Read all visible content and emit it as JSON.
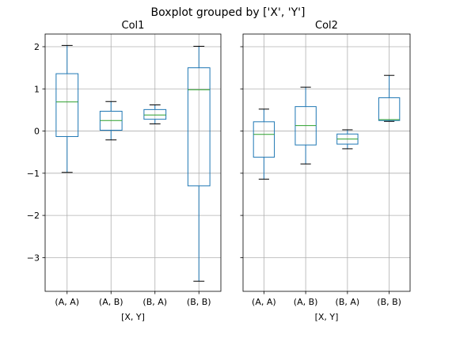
{
  "suptitle": "Boxplot grouped by ['X', 'Y']",
  "colors": {
    "box": "#1f77b4",
    "median": "#2ca02c",
    "whisker": "#1f77b4",
    "cap": "#000000",
    "grid": "#b0b0b0"
  },
  "chart_data": [
    {
      "type": "box",
      "title": "Col1",
      "xlabel": "[X, Y]",
      "ylabel": "",
      "ylim": [
        -3.8,
        2.3
      ],
      "yticks": [
        -3,
        -2,
        -1,
        0,
        1,
        2
      ],
      "ytick_labels": [
        "−3",
        "−2",
        "−1",
        "0",
        "1",
        "2"
      ],
      "grid": true,
      "categories": [
        "(A, A)",
        "(A, B)",
        "(B, A)",
        "(B, B)"
      ],
      "boxes": [
        {
          "whislo": -0.98,
          "q1": -0.13,
          "med": 0.69,
          "q3": 1.36,
          "whishi": 2.03
        },
        {
          "whislo": -0.21,
          "q1": 0.02,
          "med": 0.25,
          "q3": 0.47,
          "whishi": 0.7
        },
        {
          "whislo": 0.17,
          "q1": 0.28,
          "med": 0.38,
          "q3": 0.51,
          "whishi": 0.62
        },
        {
          "whislo": -3.56,
          "q1": -1.3,
          "med": 0.98,
          "q3": 1.5,
          "whishi": 2.01
        }
      ]
    },
    {
      "type": "box",
      "title": "Col2",
      "xlabel": "[X, Y]",
      "ylabel": "",
      "ylim": [
        -3.8,
        2.3
      ],
      "yticks": [
        -3,
        -2,
        -1,
        0,
        1,
        2
      ],
      "grid": true,
      "categories": [
        "(A, A)",
        "(A, B)",
        "(B, A)",
        "(B, B)"
      ],
      "boxes": [
        {
          "whislo": -1.14,
          "q1": -0.62,
          "med": -0.08,
          "q3": 0.22,
          "whishi": 0.52
        },
        {
          "whislo": -0.78,
          "q1": -0.33,
          "med": 0.13,
          "q3": 0.58,
          "whishi": 1.04
        },
        {
          "whislo": -0.42,
          "q1": -0.31,
          "med": -0.19,
          "q3": -0.07,
          "whishi": 0.03
        },
        {
          "whislo": 0.23,
          "q1": 0.25,
          "med": 0.27,
          "q3": 0.79,
          "whishi": 1.32
        }
      ]
    }
  ]
}
